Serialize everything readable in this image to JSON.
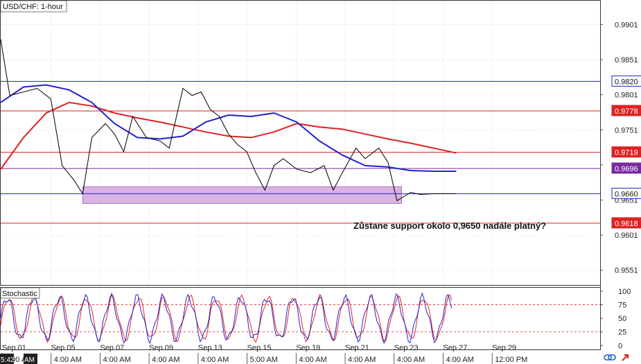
{
  "window": {
    "symbol_label": "USD/CHF: 1-hour",
    "indicator_label": "Stochastic",
    "corner_time": "5:42",
    "corner_marker": "AM"
  },
  "annotation": "Zůstane support okolo 0,9650 nadále platný?",
  "icons": [
    "link-icon",
    "arrow-icon"
  ],
  "colors": {
    "blue": "#2222cc",
    "red": "#dd2222",
    "purple": "#7a2a9e",
    "zone": "#d9b3e3",
    "grid": "#c8c8c8"
  },
  "chart_data": [
    {
      "type": "line",
      "title": "USD/CHF: 1-hour",
      "ylim": [
        0.953,
        0.9935
      ],
      "y_ticks": [
        "0.9901",
        "0.9851",
        "0.9801",
        "0.9751",
        "0.9701",
        "0.9651",
        "0.9601",
        "0.9551"
      ],
      "y_tick_values": [
        0.9901,
        0.9851,
        0.9801,
        0.9751,
        0.9701,
        0.9651,
        0.9601,
        0.9551
      ],
      "x_date_labels": [
        "Sep 01",
        "Sep 05",
        "Sep 07",
        "Sep 09",
        "Sep 13",
        "Sep 15",
        "Sep 19",
        "Sep 21",
        "Sep 23",
        "Sep 27",
        "Sep 29"
      ],
      "x_time_labels": [
        "4:00 AM",
        "4:00 AM",
        "4:00 AM",
        "4:00 AM",
        "4:00 AM",
        "5:00 AM",
        "4:00 AM",
        "4:00 AM",
        "4:00 AM",
        "4:00 AM",
        "12:00 PM"
      ],
      "horizontal_levels": [
        {
          "value": 0.982,
          "label": "0.9820",
          "color": "blue"
        },
        {
          "value": 0.9778,
          "label": "0.9778",
          "color": "red"
        },
        {
          "value": 0.9719,
          "label": "0.9719",
          "color": "red"
        },
        {
          "value": 0.9696,
          "label": "0.9696",
          "color": "purple"
        },
        {
          "value": 0.966,
          "label": "0.9660",
          "color": "blue"
        },
        {
          "value": 0.9618,
          "label": "0.9618",
          "color": "red"
        }
      ],
      "support_zone": {
        "top": 0.967,
        "bottom": 0.9646,
        "x_start": 0.18,
        "x_end": 0.88
      },
      "price_path_x": [
        0,
        0.02,
        0.05,
        0.08,
        0.11,
        0.135,
        0.16,
        0.18,
        0.2,
        0.23,
        0.25,
        0.27,
        0.29,
        0.32,
        0.35,
        0.37,
        0.4,
        0.42,
        0.44,
        0.46,
        0.48,
        0.5,
        0.52,
        0.54,
        0.56,
        0.58,
        0.6,
        0.62,
        0.65,
        0.68,
        0.71,
        0.73,
        0.75,
        0.78,
        0.8,
        0.83,
        0.85,
        0.87,
        0.9,
        0.92,
        0.95,
        1.0
      ],
      "price_path_y": [
        0.988,
        0.98,
        0.9805,
        0.981,
        0.9795,
        0.97,
        0.968,
        0.966,
        0.974,
        0.976,
        0.9745,
        0.972,
        0.977,
        0.974,
        0.9735,
        0.9725,
        0.981,
        0.98,
        0.9805,
        0.978,
        0.977,
        0.9745,
        0.973,
        0.972,
        0.969,
        0.9665,
        0.97,
        0.971,
        0.9695,
        0.969,
        0.97,
        0.9665,
        0.969,
        0.9725,
        0.971,
        0.9725,
        0.9705,
        0.965,
        0.9662,
        0.9659,
        0.966,
        0.966
      ],
      "ma_blue_x": [
        0,
        0.05,
        0.1,
        0.15,
        0.2,
        0.25,
        0.3,
        0.35,
        0.4,
        0.45,
        0.5,
        0.55,
        0.6,
        0.65,
        0.7,
        0.75,
        0.8,
        0.85,
        0.9,
        0.95,
        1.0
      ],
      "ma_blue_y": [
        0.979,
        0.9812,
        0.9815,
        0.9808,
        0.979,
        0.976,
        0.974,
        0.9738,
        0.9742,
        0.9762,
        0.9772,
        0.977,
        0.9775,
        0.9762,
        0.9735,
        0.9715,
        0.97,
        0.9698,
        0.9693,
        0.9692,
        0.9692
      ],
      "ma_red_x": [
        0,
        0.05,
        0.1,
        0.15,
        0.2,
        0.25,
        0.3,
        0.35,
        0.4,
        0.45,
        0.5,
        0.55,
        0.6,
        0.65,
        0.7,
        0.75,
        0.8,
        0.85,
        0.9,
        0.95,
        1.0
      ],
      "ma_red_y": [
        0.9695,
        0.974,
        0.9775,
        0.979,
        0.9785,
        0.9775,
        0.9768,
        0.9762,
        0.9755,
        0.9748,
        0.9742,
        0.974,
        0.9748,
        0.976,
        0.9755,
        0.9752,
        0.9745,
        0.9738,
        0.9732,
        0.9725,
        0.9718
      ]
    },
    {
      "type": "line",
      "title": "Stochastic",
      "ylim": [
        0,
        100
      ],
      "y_ticks": [
        "100",
        "75",
        "50",
        "25",
        "0"
      ],
      "y_tick_values": [
        100,
        75,
        50,
        25,
        0
      ],
      "levels": [
        75,
        25
      ]
    }
  ]
}
